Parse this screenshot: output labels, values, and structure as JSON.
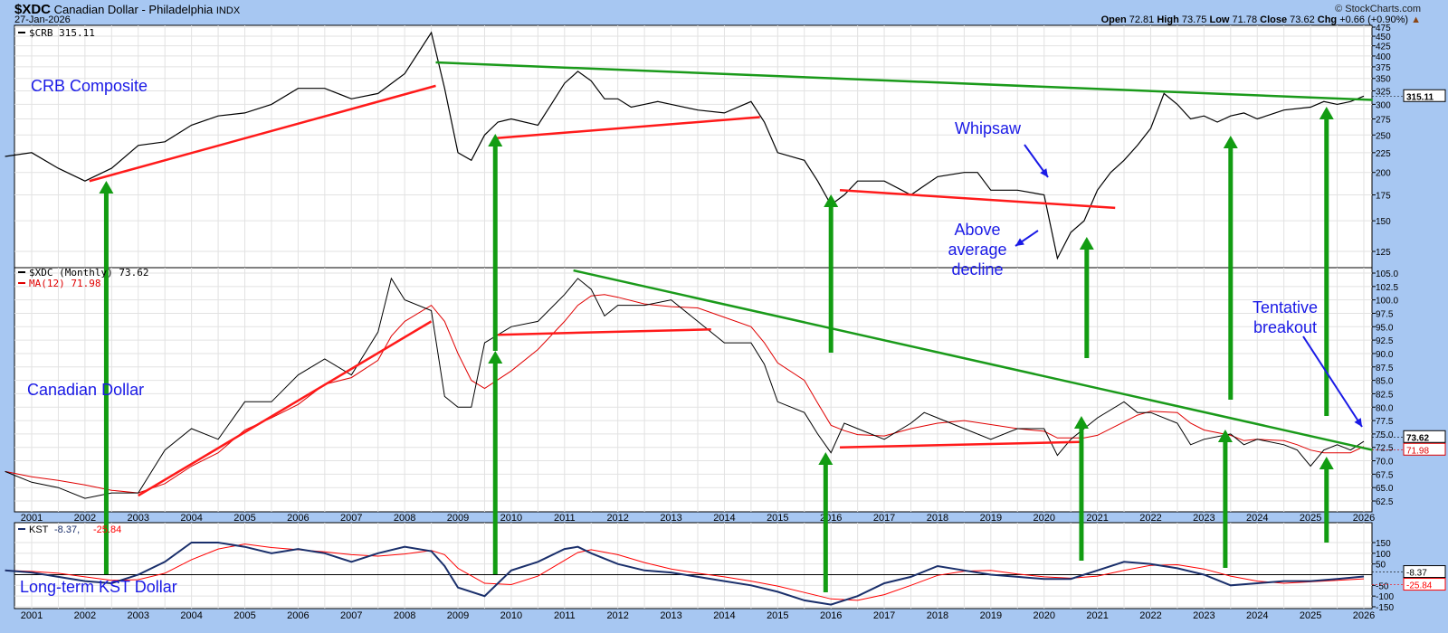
{
  "header": {
    "symbol": "$XDC",
    "name": "Canadian Dollar - Philadelphia",
    "exchange": "INDX",
    "date": "27-Jan-2026",
    "source": "© StockCharts.com",
    "open_label": "Open",
    "open": "72.81",
    "high_label": "High",
    "high": "73.75",
    "low_label": "Low",
    "low": "71.78",
    "close_label": "Close",
    "close": "73.62",
    "chg_label": "Chg",
    "chg": "+0.66 (+0.90%)"
  },
  "annotations": {
    "crb": "CRB Composite",
    "cad": "Canadian Dollar",
    "kst": "Long-term KST Dollar",
    "whipsaw": "Whipsaw",
    "decline": "Above average decline",
    "breakout": "Tentative breakout"
  },
  "colors": {
    "price": "#000000",
    "ma": "#e00000",
    "kst": "#1a2f6b",
    "signal": "#ff0000",
    "trend_up": "#ff1a1a",
    "trend_down": "#1a9a1a",
    "arrow": "#129c12",
    "callout": "#1a1ae6"
  },
  "chart_data": [
    {
      "type": "line",
      "panel": "top",
      "legend": "$CRB 315.11",
      "last_label": "315.11",
      "scale": "log",
      "ylim": [
        110,
        475
      ],
      "yticks": [
        125,
        150,
        175,
        200,
        225,
        250,
        275,
        300,
        325,
        350,
        375,
        400,
        425,
        450,
        475
      ],
      "x": [
        "2000-07",
        "2001-01",
        "2001-07",
        "2002-01",
        "2002-07",
        "2003-01",
        "2003-07",
        "2004-01",
        "2004-07",
        "2005-01",
        "2005-07",
        "2006-01",
        "2006-07",
        "2007-01",
        "2007-07",
        "2008-01",
        "2008-07",
        "2008-10",
        "2009-01",
        "2009-04",
        "2009-07",
        "2009-10",
        "2010-01",
        "2010-07",
        "2010-10",
        "2011-01",
        "2011-04",
        "2011-07",
        "2011-10",
        "2012-01",
        "2012-04",
        "2012-07",
        "2012-10",
        "2013-01",
        "2013-07",
        "2014-01",
        "2014-07",
        "2014-10",
        "2015-01",
        "2015-07",
        "2015-10",
        "2016-01",
        "2016-04",
        "2016-07",
        "2017-01",
        "2017-07",
        "2018-01",
        "2018-07",
        "2018-10",
        "2019-01",
        "2019-07",
        "2020-01",
        "2020-04",
        "2020-07",
        "2020-10",
        "2021-01",
        "2021-04",
        "2021-07",
        "2021-10",
        "2022-01",
        "2022-04",
        "2022-07",
        "2022-10",
        "2023-01",
        "2023-04",
        "2023-07",
        "2023-10",
        "2024-01",
        "2024-07",
        "2025-01",
        "2025-04",
        "2025-07",
        "2025-10",
        "2026-01"
      ],
      "values": [
        220,
        225,
        205,
        190,
        205,
        235,
        240,
        265,
        280,
        285,
        300,
        330,
        330,
        310,
        320,
        360,
        460,
        330,
        225,
        215,
        250,
        270,
        275,
        265,
        300,
        340,
        365,
        345,
        310,
        310,
        295,
        300,
        305,
        300,
        290,
        285,
        305,
        270,
        225,
        215,
        190,
        165,
        175,
        190,
        190,
        175,
        195,
        200,
        200,
        180,
        180,
        175,
        120,
        140,
        150,
        180,
        200,
        215,
        235,
        260,
        320,
        300,
        275,
        280,
        270,
        280,
        285,
        275,
        290,
        295,
        305,
        300,
        305,
        315.11
      ],
      "trendlines": [
        {
          "color": "red",
          "from": [
            "2002-02",
            190
          ],
          "to": [
            "2008-08",
            335
          ]
        },
        {
          "color": "green",
          "from": [
            "2008-08",
            385
          ],
          "to": [
            "2026-03",
            308
          ]
        },
        {
          "color": "red",
          "from": [
            "2009-09",
            245
          ],
          "to": [
            "2014-09",
            278
          ]
        },
        {
          "color": "red",
          "from": [
            "2016-03",
            180
          ],
          "to": [
            "2021-05",
            162
          ]
        }
      ]
    },
    {
      "type": "line",
      "panel": "middle",
      "legend": "$XDC (Monthly) 73.62",
      "ma_legend": "MA(12) 71.98",
      "last_label": "73.62",
      "ma_last_label": "71.98",
      "ylim": [
        61,
        106
      ],
      "yticks": [
        62.5,
        65,
        67.5,
        70,
        72.5,
        75,
        77.5,
        80,
        82.5,
        85,
        87.5,
        90,
        92.5,
        95,
        97.5,
        100,
        102.5,
        105
      ],
      "x": [
        "2000-07",
        "2001-01",
        "2001-07",
        "2002-01",
        "2002-07",
        "2003-01",
        "2003-07",
        "2004-01",
        "2004-07",
        "2005-01",
        "2005-07",
        "2006-01",
        "2006-07",
        "2007-01",
        "2007-07",
        "2007-10",
        "2008-01",
        "2008-07",
        "2008-10",
        "2009-01",
        "2009-04",
        "2009-07",
        "2010-01",
        "2010-07",
        "2011-01",
        "2011-04",
        "2011-07",
        "2011-10",
        "2012-01",
        "2012-07",
        "2013-01",
        "2013-07",
        "2014-01",
        "2014-07",
        "2014-10",
        "2015-01",
        "2015-07",
        "2015-10",
        "2016-01",
        "2016-04",
        "2016-07",
        "2017-01",
        "2017-07",
        "2017-10",
        "2018-01",
        "2018-07",
        "2019-01",
        "2019-07",
        "2020-01",
        "2020-04",
        "2020-07",
        "2020-10",
        "2021-01",
        "2021-07",
        "2021-10",
        "2022-01",
        "2022-07",
        "2022-10",
        "2023-01",
        "2023-07",
        "2023-10",
        "2024-01",
        "2024-07",
        "2024-10",
        "2025-01",
        "2025-04",
        "2025-07",
        "2025-10",
        "2026-01"
      ],
      "values": [
        68,
        66,
        65,
        63,
        64,
        64,
        72,
        76,
        74,
        81,
        81,
        86,
        89,
        86,
        94,
        104,
        100,
        98,
        82,
        80,
        80,
        92,
        95,
        96,
        101,
        104,
        102,
        97,
        99,
        99,
        100,
        96,
        92,
        92,
        88,
        81,
        79,
        75,
        71.5,
        77,
        76,
        74,
        77,
        79,
        78,
        76,
        74,
        76,
        76,
        71,
        74,
        76,
        78,
        81,
        79,
        79,
        77,
        73,
        74,
        75,
        73,
        74,
        73,
        72,
        69,
        72,
        73,
        72,
        73.62
      ],
      "trendlines": [
        {
          "color": "red",
          "from": [
            "2003-01",
            63.5
          ],
          "to": [
            "2008-07",
            96
          ]
        },
        {
          "color": "red",
          "from": [
            "2009-10",
            93.5
          ],
          "to": [
            "2013-10",
            94.5
          ]
        },
        {
          "color": "green",
          "from": [
            "2011-03",
            105.5
          ],
          "to": [
            "2026-03",
            72
          ]
        },
        {
          "color": "red",
          "from": [
            "2016-03",
            72.5
          ],
          "to": [
            "2020-09",
            73.5
          ]
        }
      ]
    },
    {
      "type": "line",
      "panel": "bottom",
      "legend_name": "KST",
      "legend_kst": "-8.37",
      "legend_signal": "-25.84",
      "last_label": "-8.37",
      "signal_last_label": "-25.84",
      "ylim": [
        -160,
        160
      ],
      "yticks": [
        -150,
        -100,
        -50,
        50,
        100,
        150
      ],
      "x": [
        "2000-07",
        "2001-01",
        "2001-07",
        "2002-01",
        "2002-07",
        "2003-01",
        "2003-07",
        "2004-01",
        "2004-07",
        "2005-01",
        "2005-07",
        "2006-01",
        "2006-07",
        "2007-01",
        "2007-07",
        "2008-01",
        "2008-07",
        "2008-10",
        "2009-01",
        "2009-07",
        "2010-01",
        "2010-07",
        "2011-01",
        "2011-04",
        "2011-07",
        "2012-01",
        "2012-07",
        "2013-01",
        "2013-07",
        "2014-01",
        "2014-07",
        "2015-01",
        "2015-07",
        "2016-01",
        "2016-07",
        "2017-01",
        "2017-07",
        "2018-01",
        "2018-07",
        "2019-01",
        "2019-07",
        "2020-01",
        "2020-07",
        "2021-01",
        "2021-07",
        "2022-01",
        "2022-07",
        "2023-01",
        "2023-07",
        "2024-01",
        "2024-07",
        "2025-01",
        "2025-07",
        "2026-01"
      ],
      "values": [
        20,
        10,
        -10,
        -30,
        -40,
        0,
        60,
        150,
        150,
        130,
        100,
        120,
        100,
        60,
        100,
        130,
        110,
        40,
        -60,
        -100,
        20,
        60,
        120,
        130,
        100,
        50,
        20,
        10,
        -10,
        -30,
        -50,
        -80,
        -120,
        -140,
        -100,
        -40,
        -10,
        40,
        20,
        0,
        -10,
        -20,
        -20,
        20,
        60,
        50,
        30,
        0,
        -50,
        -40,
        -30,
        -30,
        -20,
        -8.37
      ]
    },
    {
      "type": "axis",
      "xticks": [
        "2001",
        "2002",
        "2003",
        "2004",
        "2005",
        "2006",
        "2007",
        "2008",
        "2009",
        "2010",
        "2011",
        "2012",
        "2013",
        "2014",
        "2015",
        "2016",
        "2017",
        "2018",
        "2019",
        "2020",
        "2021",
        "2022",
        "2023",
        "2024",
        "2025",
        "2026"
      ]
    }
  ]
}
